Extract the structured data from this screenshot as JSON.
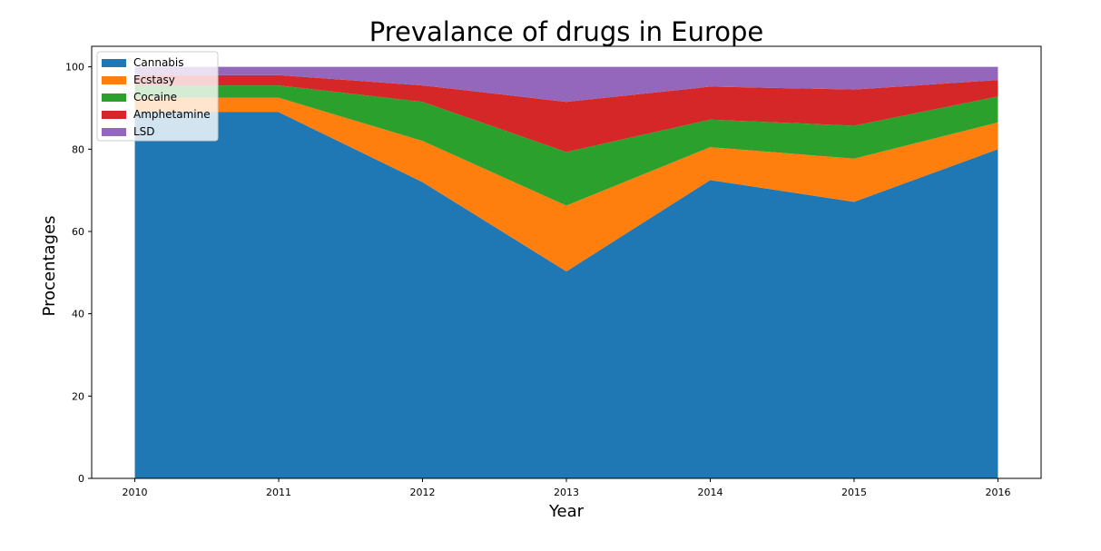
{
  "chart_data": {
    "type": "area",
    "stacked": true,
    "title": "Prevalance of drugs in Europe",
    "xlabel": "Year",
    "ylabel": "Procentages",
    "x": [
      2010,
      2011,
      2012,
      2013,
      2014,
      2015,
      2016
    ],
    "x_ticks": [
      "2010",
      "2011",
      "2012",
      "2013",
      "2014",
      "2015",
      "2016"
    ],
    "y_ticks": [
      "0",
      "20",
      "40",
      "60",
      "80",
      "100"
    ],
    "y_tick_values": [
      0,
      20,
      40,
      60,
      80,
      100
    ],
    "xlim": [
      2009.7,
      2016.3
    ],
    "ylim": [
      0,
      105
    ],
    "grid": false,
    "legend_position": "top-left",
    "series": [
      {
        "name": "Cannabis",
        "color": "#1f77b4",
        "values": [
          89,
          89,
          72,
          50.3,
          72.5,
          67.2,
          80
        ]
      },
      {
        "name": "Ecstasy",
        "color": "#ff7f0e",
        "values": [
          3.5,
          3.5,
          10,
          16,
          8,
          10.5,
          6.5
        ]
      },
      {
        "name": "Cocaine",
        "color": "#2ca02c",
        "values": [
          3,
          3,
          9.5,
          13,
          6.7,
          8,
          6.3
        ]
      },
      {
        "name": "Amphetamine",
        "color": "#d62728",
        "values": [
          2.5,
          2.5,
          4,
          12.2,
          8,
          8.8,
          4
        ]
      },
      {
        "name": "LSD",
        "color": "#9467bd",
        "values": [
          2,
          2,
          4.5,
          8.5,
          4.8,
          5.5,
          3.2
        ]
      }
    ]
  }
}
